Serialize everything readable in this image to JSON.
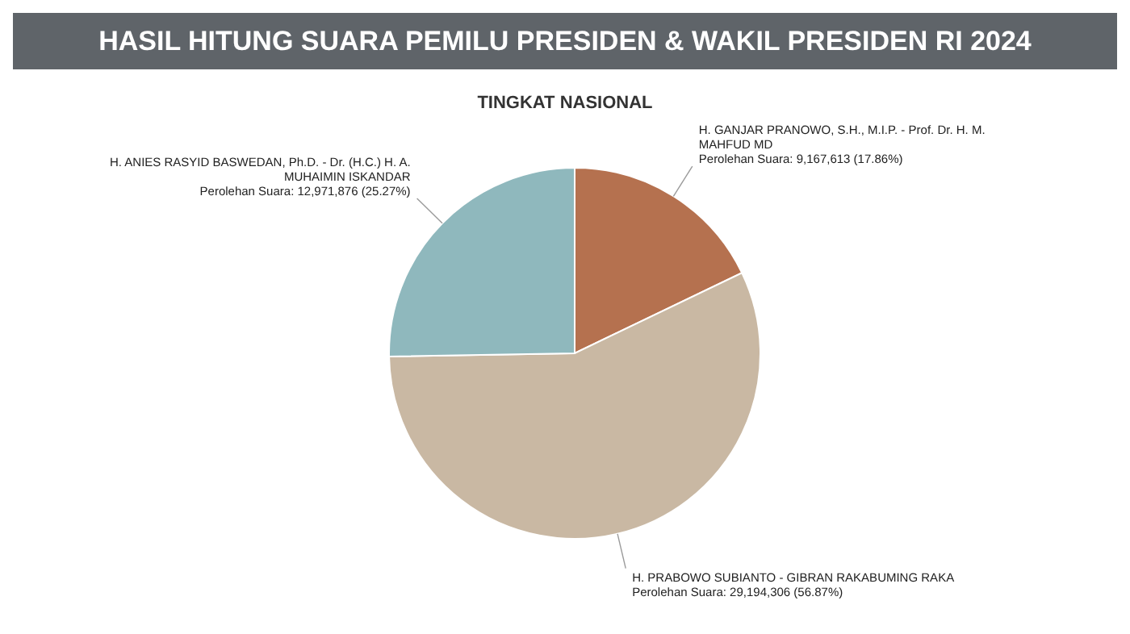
{
  "chart_data": {
    "type": "pie",
    "title": "HASIL HITUNG SUARA PEMILU PRESIDEN & WAKIL PRESIDEN RI 2024",
    "subtitle": "TINGKAT NASIONAL",
    "categories": [
      "H. GANJAR PRANOWO, S.H., M.I.P. - Prof. Dr. H. M. MAHFUD MD",
      "H. PRABOWO SUBIANTO - GIBRAN RAKABUMING RAKA",
      "H. ANIES RASYID BASWEDAN, Ph.D. - Dr. (H.C.) H. A. MUHAIMIN ISKANDAR"
    ],
    "values": [
      9167613,
      29194306,
      12971876
    ],
    "value_labels": [
      "Perolehan Suara: 9,167,613 (17.86%)",
      "Perolehan Suara: 29,194,306 (56.87%)",
      "Perolehan Suara: 12,971,876 (25.27%)"
    ],
    "colors": [
      "#b5714f",
      "#c9b8a3",
      "#8fb8bd"
    ],
    "legend": false
  }
}
